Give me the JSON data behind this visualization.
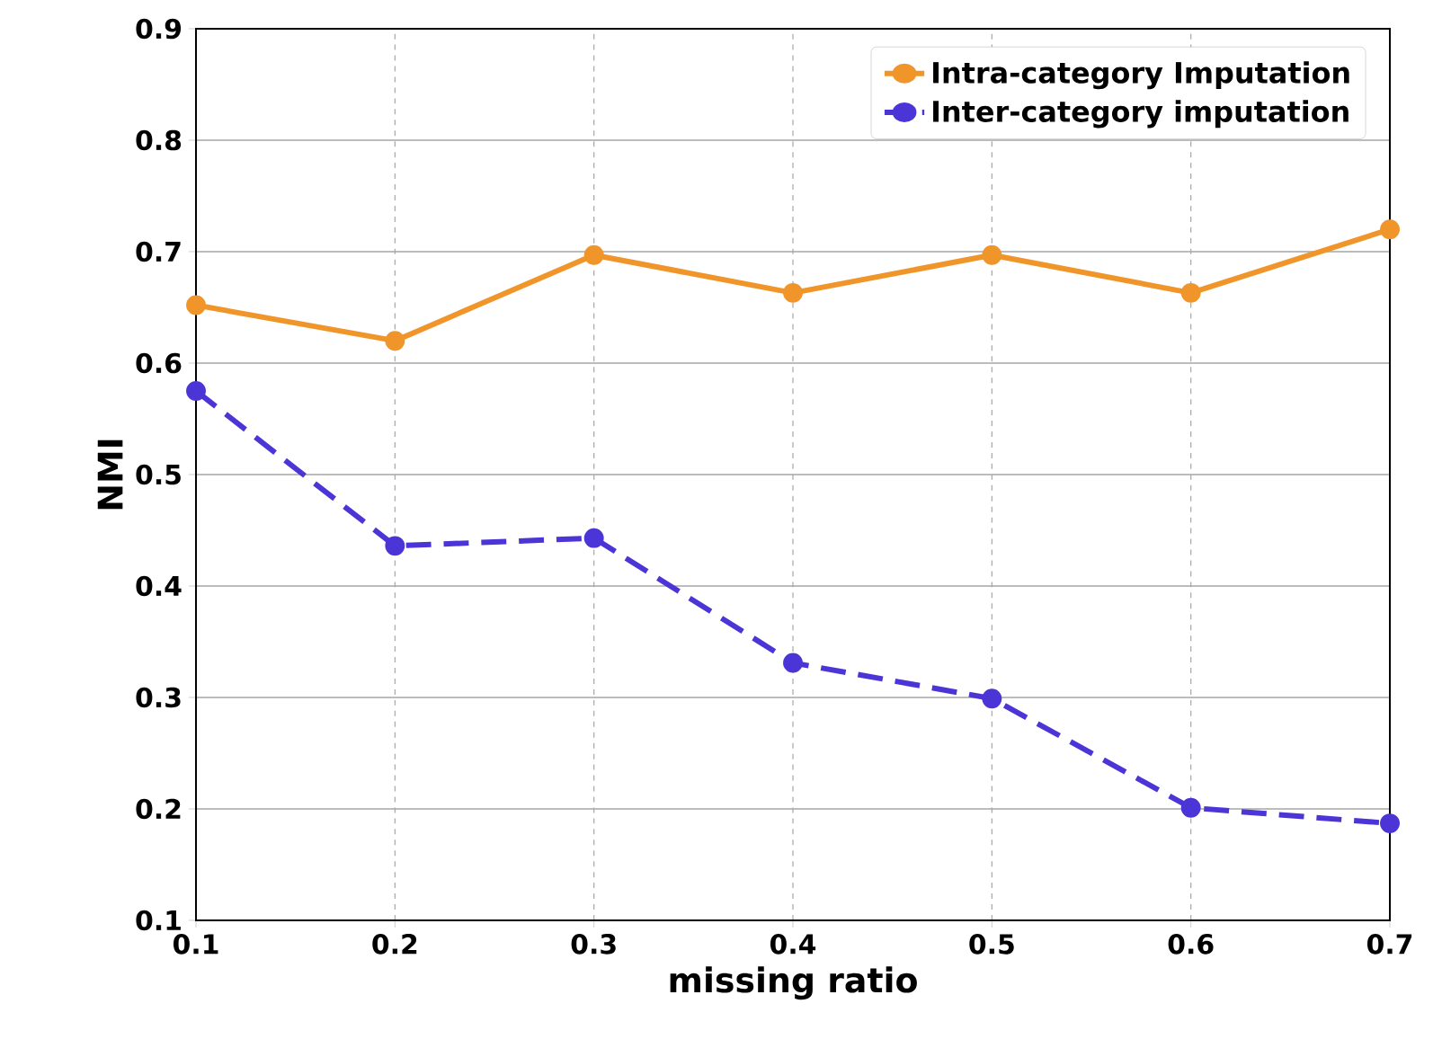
{
  "chart_data": {
    "type": "line",
    "xlabel": "missing ratio",
    "ylabel": "NMI",
    "x": [
      0.1,
      0.2,
      0.3,
      0.4,
      0.5,
      0.6,
      0.7
    ],
    "series": [
      {
        "name": "Intra-category Imputation",
        "color": "#f0952a",
        "line_style": "solid",
        "values": [
          0.652,
          0.62,
          0.697,
          0.663,
          0.697,
          0.663,
          0.72
        ]
      },
      {
        "name": "Inter-category imputation",
        "color": "#4b35d6",
        "line_style": "dashed",
        "values": [
          0.575,
          0.436,
          0.443,
          0.331,
          0.299,
          0.201,
          0.187
        ]
      }
    ],
    "xlim": [
      0.1,
      0.7
    ],
    "ylim": [
      0.1,
      0.9
    ],
    "xticks": [
      0.1,
      0.2,
      0.3,
      0.4,
      0.5,
      0.6,
      0.7
    ],
    "yticks": [
      0.1,
      0.2,
      0.3,
      0.4,
      0.5,
      0.6,
      0.7,
      0.8,
      0.9
    ],
    "grid": true,
    "legend": "top right",
    "marker": "circle"
  }
}
